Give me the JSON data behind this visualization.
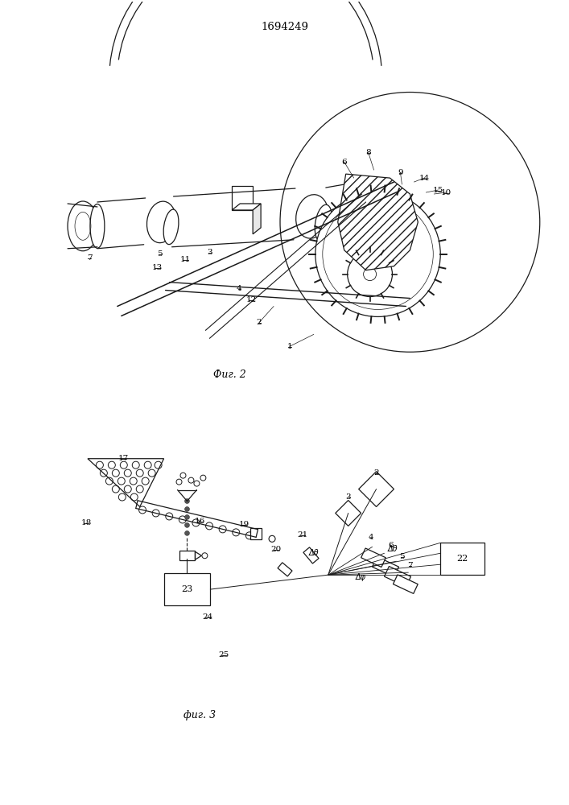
{
  "title": "1694249",
  "fig2_caption": "Фиг. 2",
  "fig3_caption": "фиг. 3",
  "bg_color": "#ffffff",
  "line_color": "#1a1a1a"
}
